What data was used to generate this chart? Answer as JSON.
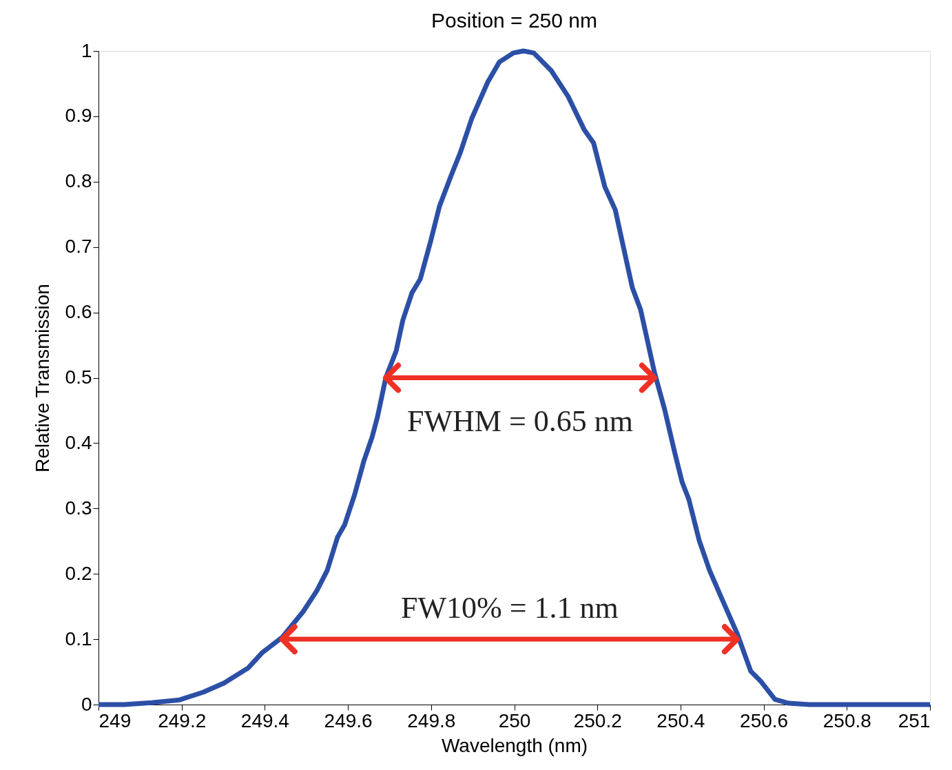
{
  "chart_data": {
    "type": "line",
    "title": "Position = 250 nm",
    "xlabel": "Wavelength (nm)",
    "ylabel": "Relative Transmission",
    "xlim": [
      249,
      251
    ],
    "xticks": [
      249,
      249.2,
      249.4,
      249.6,
      249.8,
      250,
      250.2,
      250.4,
      250.6,
      250.8,
      251
    ],
    "ylim": [
      0,
      1
    ],
    "yticks": [
      0,
      0.1,
      0.2,
      0.3,
      0.4,
      0.5,
      0.6,
      0.7,
      0.8,
      0.9,
      1
    ],
    "grid": false,
    "line_style": "solid",
    "marker": "none",
    "series": [
      {
        "color": "#2c4fa6",
        "x": [
          249.0,
          249.061,
          249.128,
          249.194,
          249.252,
          249.302,
          249.36,
          249.393,
          249.442,
          249.492,
          249.525,
          249.55,
          249.575,
          249.592,
          249.616,
          249.638,
          249.658,
          249.671,
          249.691,
          249.716,
          249.732,
          249.754,
          249.774,
          249.799,
          249.82,
          249.848,
          249.87,
          249.898,
          249.936,
          249.964,
          249.998,
          250.022,
          250.047,
          250.089,
          250.13,
          250.168,
          250.191,
          250.218,
          250.243,
          250.263,
          250.284,
          250.304,
          250.337,
          250.362,
          250.387,
          250.404,
          250.42,
          250.445,
          250.47,
          250.5,
          250.536,
          250.569,
          250.594,
          250.627,
          250.66,
          250.71,
          251.0
        ],
        "values": [
          0,
          0,
          0.003,
          0.007,
          0.019,
          0.033,
          0.056,
          0.079,
          0.103,
          0.142,
          0.174,
          0.205,
          0.256,
          0.275,
          0.321,
          0.372,
          0.409,
          0.44,
          0.5,
          0.541,
          0.588,
          0.63,
          0.651,
          0.709,
          0.762,
          0.809,
          0.844,
          0.897,
          0.952,
          0.983,
          0.997,
          1.0,
          0.997,
          0.97,
          0.93,
          0.88,
          0.859,
          0.792,
          0.757,
          0.699,
          0.638,
          0.604,
          0.509,
          0.451,
          0.383,
          0.34,
          0.314,
          0.251,
          0.205,
          0.161,
          0.109,
          0.051,
          0.035,
          0.008,
          0.002,
          0,
          0
        ]
      },
      {
        "type": "line",
        "color": "#ee3124",
        "x": [
          249.691,
          250.337
        ],
        "values": [
          0.5,
          0.5
        ]
      },
      {
        "type": "line",
        "color": "#ee3124",
        "x": [
          249.442,
          250.536
        ],
        "values": [
          0.1,
          0.1
        ]
      }
    ],
    "annotations": [
      "FWHM = 0.65 nm",
      "FW10% = 1.1 nm"
    ]
  }
}
